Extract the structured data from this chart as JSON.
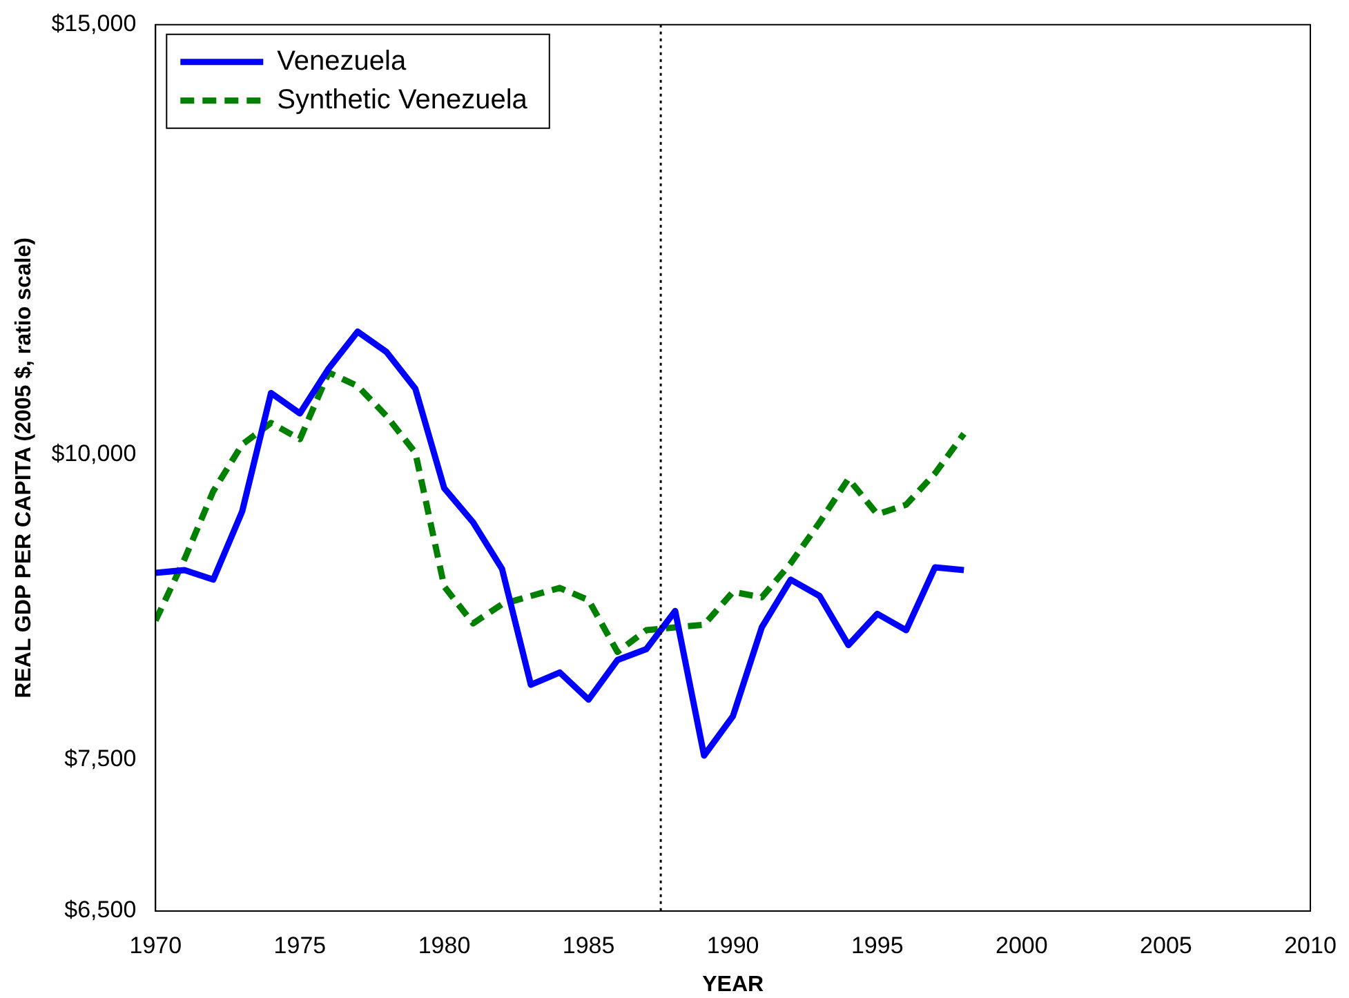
{
  "chart_data": {
    "type": "line",
    "xlabel": "YEAR",
    "ylabel": "REAL GDP PER CAPITA (2005 $, ratio scale)",
    "x": [
      1970,
      1971,
      1972,
      1973,
      1974,
      1975,
      1976,
      1977,
      1978,
      1979,
      1980,
      1981,
      1982,
      1983,
      1984,
      1985,
      1986,
      1987,
      1988,
      1989,
      1990,
      1991,
      1992,
      1993,
      1994,
      1995,
      1996,
      1997,
      1998
    ],
    "series": [
      {
        "name": "Venezuela",
        "color": "#0000ff",
        "line_style": "solid",
        "values": [
          8943,
          8966,
          8886,
          9476,
          10597,
          10395,
          10846,
          11229,
          11015,
          10640,
          9686,
          9379,
          8978,
          8047,
          8141,
          7935,
          8237,
          8322,
          8627,
          7527,
          7812,
          8495,
          8886,
          8750,
          8354,
          8604,
          8472,
          8990,
          8966
        ]
      },
      {
        "name": "Synthetic Venezuela",
        "color": "#008000",
        "line_style": "dashed",
        "values": [
          8549,
          9058,
          9660,
          10094,
          10302,
          10145,
          10804,
          10667,
          10369,
          10016,
          8829,
          8527,
          8682,
          8750,
          8817,
          8716,
          8300,
          8472,
          8495,
          8516,
          8784,
          8739,
          9024,
          9379,
          9773,
          9452,
          9537,
          9823,
          10197
        ]
      }
    ],
    "xlim": [
      1970,
      2010
    ],
    "xticks": [
      1970,
      1975,
      1980,
      1985,
      1990,
      1995,
      2000,
      2005,
      2010
    ],
    "ylim": [
      6500,
      15000
    ],
    "yticks": [
      {
        "value": 6500,
        "label": "$6,500"
      },
      {
        "value": 7500,
        "label": "$7,500"
      },
      {
        "value": 10000,
        "label": "$10,000"
      },
      {
        "value": 15000,
        "label": "$15,000"
      }
    ],
    "log": "y",
    "grid": false,
    "legend": "top left",
    "marker": "none",
    "ref_lines": [
      {
        "axis": "x",
        "value": 1987.5,
        "color": "#000000",
        "line_style": "dotted"
      }
    ]
  }
}
